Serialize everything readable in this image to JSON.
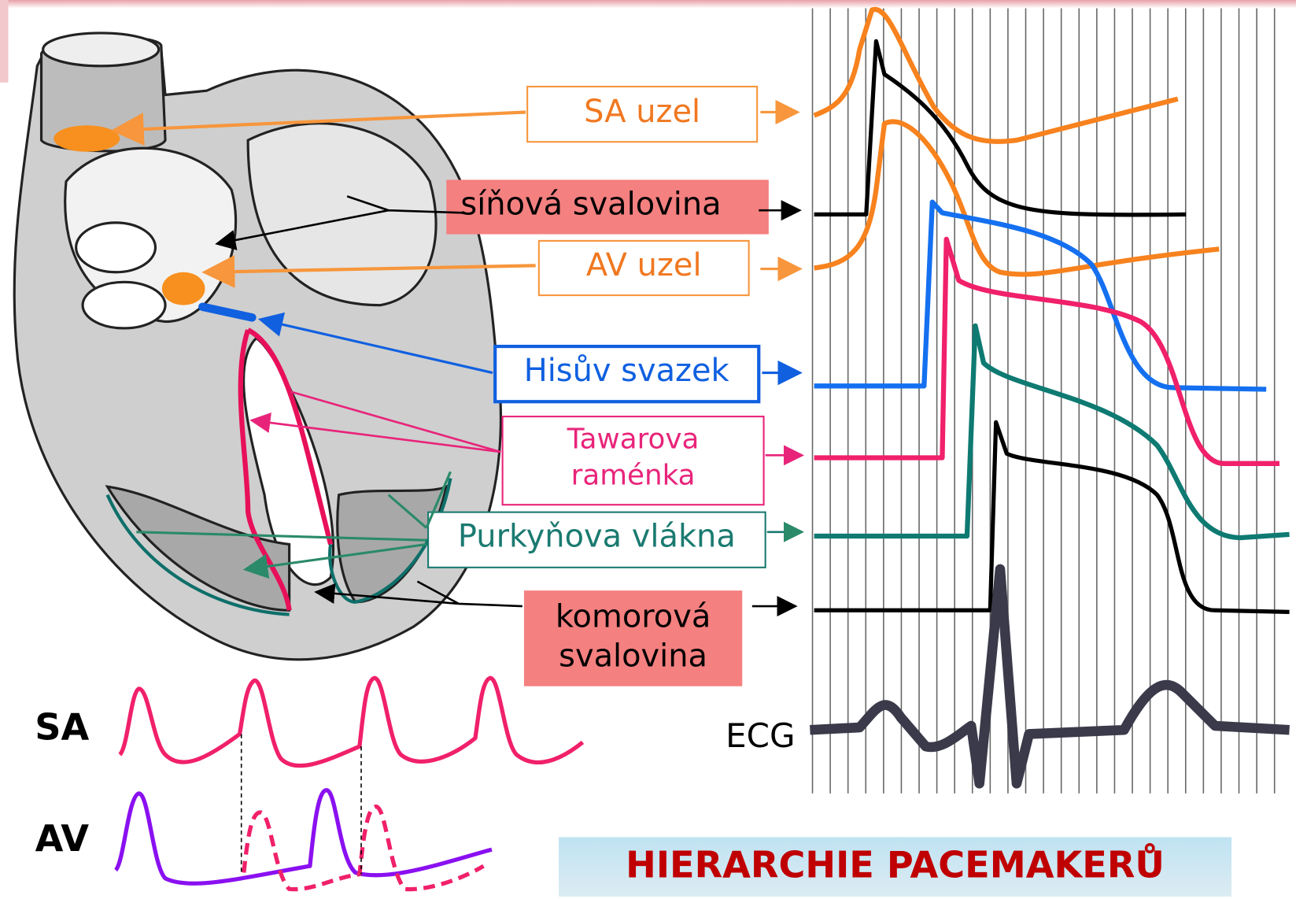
{
  "labels": {
    "sa_uzel": "SA uzel",
    "sinova_svalovina": "síňová svalovina",
    "av_uzel": "AV uzel",
    "hisuv_svazek": "Hisův svazek",
    "tawarova_ramenka": [
      "Tawarova",
      "raménka"
    ],
    "purkynova_vlakna": "Purkyňova vlákna",
    "komorova_svalovina": [
      "komorová",
      "svalovina"
    ]
  },
  "traces": {
    "sa": "SA",
    "av": "AV",
    "ecg": "ECG"
  },
  "title": "HIERARCHIE PACEMAKERŮ"
}
